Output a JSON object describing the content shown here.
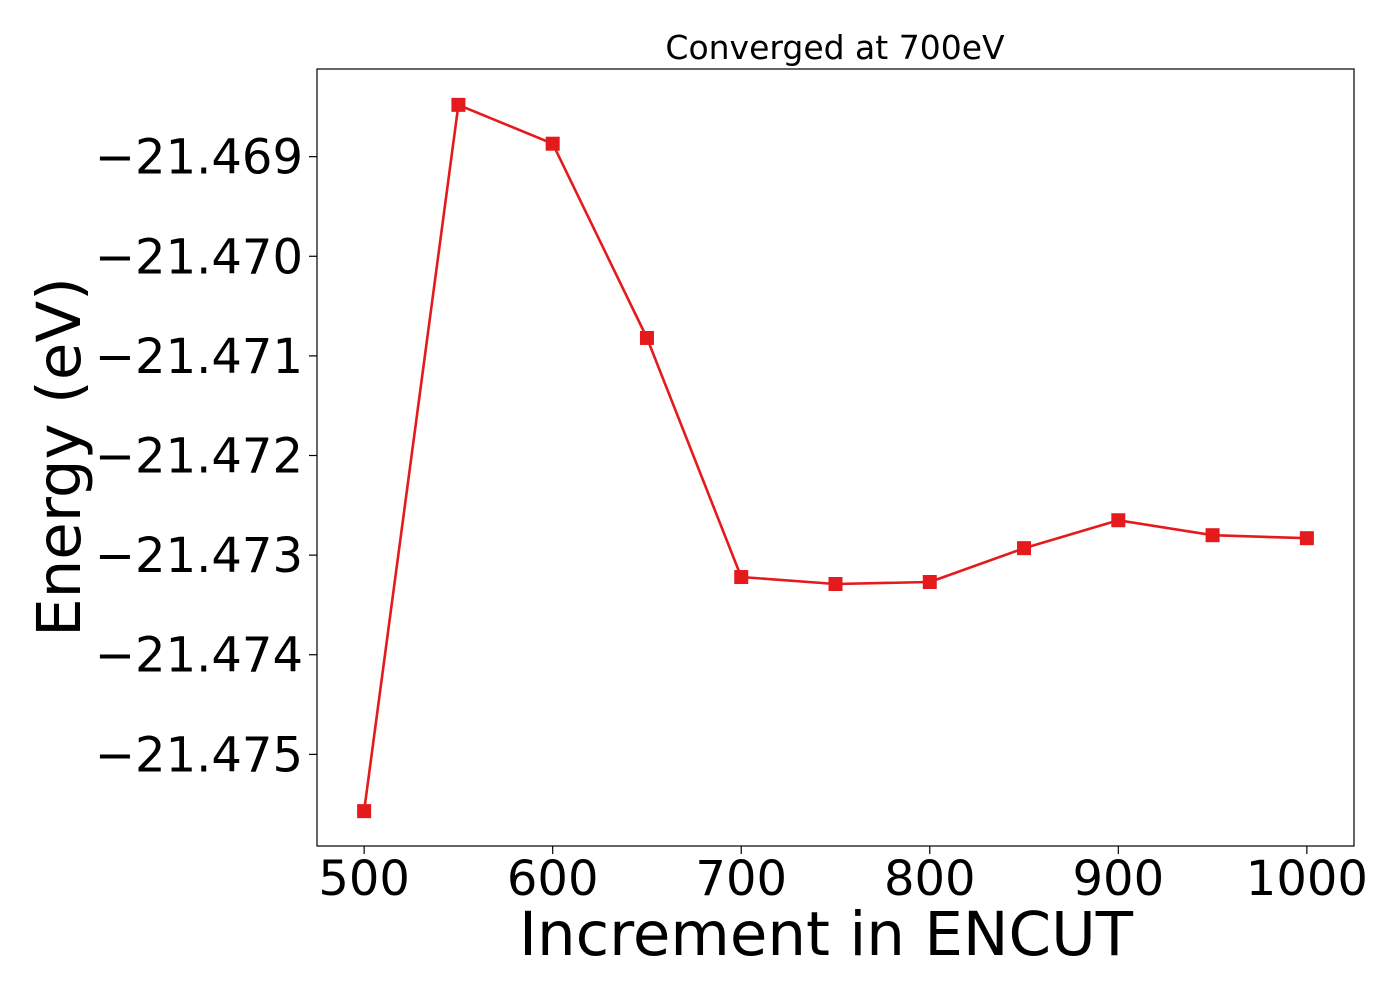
{
  "chart_data": {
    "type": "line",
    "title": "Converged at 700eV",
    "xlabel": "Increment in ENCUT",
    "ylabel": "Energy (eV)",
    "x": [
      500,
      550,
      600,
      650,
      700,
      750,
      800,
      850,
      900,
      950,
      1000
    ],
    "series": [
      {
        "values": [
          -21.47557,
          -21.46848,
          -21.46887,
          -21.47082,
          -21.47322,
          -21.47329,
          -21.47327,
          -21.47293,
          -21.47265,
          -21.4728,
          -21.47283
        ],
        "color": "#e41a1c",
        "marker": "square"
      }
    ],
    "xlim": [
      475,
      1025
    ],
    "ylim": [
      -21.47592,
      -21.46812
    ],
    "xticks": [
      500,
      600,
      700,
      800,
      900,
      1000
    ],
    "xtick_labels": [
      "500",
      "600",
      "700",
      "800",
      "900",
      "1000"
    ],
    "yticks": [
      -21.469,
      -21.47,
      -21.471,
      -21.472,
      -21.473,
      -21.474,
      -21.475
    ],
    "ytick_labels": [
      "−21.469",
      "−21.470",
      "−21.471",
      "−21.472",
      "−21.473",
      "−21.474",
      "−21.475"
    ],
    "grid": false,
    "legend": "none"
  }
}
